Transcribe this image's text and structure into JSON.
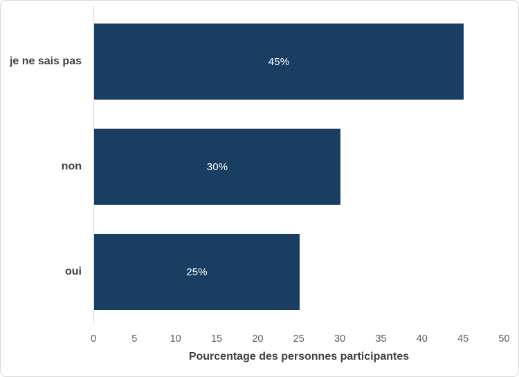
{
  "chart_data": {
    "type": "bar",
    "orientation": "horizontal",
    "categories": [
      "je ne sais pas",
      "non",
      "oui"
    ],
    "values": [
      45,
      30,
      25
    ],
    "data_labels": [
      "45%",
      "30%",
      "25%"
    ],
    "xlabel": "Pourcentage des personnes participantes",
    "ylabel": "",
    "xlim": [
      0,
      50
    ],
    "xticks": [
      0,
      5,
      10,
      15,
      20,
      25,
      30,
      35,
      40,
      45,
      50
    ],
    "grid": false,
    "legend": false,
    "colors": {
      "bar": "#1a3e62",
      "data_label": "#ffffff",
      "axis_line": "#d9d9d9",
      "tick_label": "#595959",
      "category_label": "#404040",
      "axis_title": "#404040",
      "background": "#ffffff",
      "frame_border": "#d9d9d9"
    }
  }
}
